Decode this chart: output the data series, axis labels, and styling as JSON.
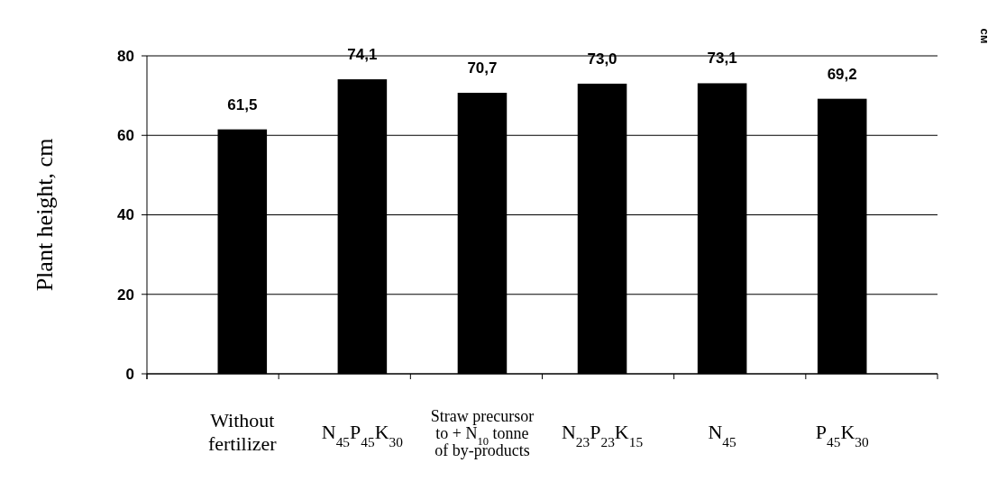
{
  "chart_data": {
    "type": "bar",
    "ylabel": "Plant height, cm",
    "annotations": [
      "см"
    ],
    "categories": [
      "Without\nfertilizer",
      "N$_{45}$P$_{45}$K$_{30}$",
      "Straw precursor\nto + N$_{10}$  tonne\nof by-products",
      "N$_{23}$P$_{23}$K$_{15}$",
      "N$_{45}$",
      "P$_{45}$K$_{30}$"
    ],
    "values": [
      61.5,
      74.1,
      70.7,
      73.0,
      73.1,
      69.2
    ],
    "value_labels": [
      "61,5",
      "74,1",
      "70,7",
      "73,0",
      "73,1",
      "69,2"
    ],
    "color": "#000000",
    "ylim": [
      0,
      80
    ],
    "yticks": [
      0,
      20,
      40,
      60,
      80
    ],
    "grid": "y"
  }
}
